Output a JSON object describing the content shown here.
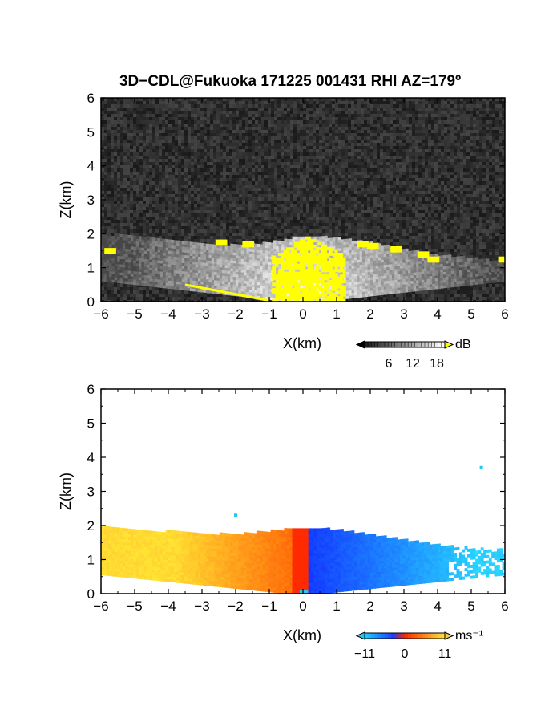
{
  "title": "3D−CDL@Fukuoka 171225 001431 RHI AZ=179º",
  "colors": {
    "echo_bg": "#2a2a2a",
    "echo_strong": "#ffff00",
    "vel_neg": "#1a3cff",
    "vel_neg_far": "#22c8f0",
    "vel_zero": "#ff2a00",
    "vel_pos": "#ffd040"
  },
  "chart_data": [
    {
      "type": "heatmap",
      "name": "intensity",
      "xlabel": "X(km)",
      "ylabel": "Z(km)",
      "xlim": [
        -6,
        6
      ],
      "ylim": [
        0,
        6
      ],
      "xticks": [
        "−6",
        "−5",
        "−4",
        "−3",
        "−2",
        "−1",
        "0",
        "1",
        "2",
        "3",
        "4",
        "5",
        "6"
      ],
      "yticks": [
        "0",
        "1",
        "2",
        "3",
        "4",
        "5",
        "6"
      ],
      "colorbar": {
        "ticks": [
          "6",
          "12",
          "18"
        ],
        "unit": "dB",
        "range": [
          0,
          20
        ]
      },
      "echo_top_km": [
        {
          "x": -6.0,
          "z": 1.95
        },
        {
          "x": -5.0,
          "z": 1.9
        },
        {
          "x": -4.0,
          "z": 1.8
        },
        {
          "x": -3.0,
          "z": 1.7
        },
        {
          "x": -2.0,
          "z": 1.62
        },
        {
          "x": -1.0,
          "z": 1.7
        },
        {
          "x": 0.0,
          "z": 1.9
        },
        {
          "x": 1.0,
          "z": 1.85
        },
        {
          "x": 2.0,
          "z": 1.7
        },
        {
          "x": 3.0,
          "z": 1.5
        },
        {
          "x": 4.0,
          "z": 1.35
        },
        {
          "x": 5.0,
          "z": 1.25
        },
        {
          "x": 6.0,
          "z": 1.15
        }
      ]
    },
    {
      "type": "heatmap",
      "name": "doppler_velocity",
      "xlabel": "X(km)",
      "ylabel": "Z(km)",
      "xlim": [
        -6,
        6
      ],
      "ylim": [
        0,
        6
      ],
      "xticks": [
        "−6",
        "−5",
        "−4",
        "−3",
        "−2",
        "−1",
        "0",
        "1",
        "2",
        "3",
        "4",
        "5",
        "6"
      ],
      "yticks": [
        "0",
        "1",
        "2",
        "3",
        "4",
        "5",
        "6"
      ],
      "colorbar": {
        "ticks": [
          "−11",
          "0",
          "11"
        ],
        "unit": "ms⁻¹",
        "range": [
          -11,
          11
        ]
      },
      "echo_top_km": [
        {
          "x": -6.0,
          "z": 1.95
        },
        {
          "x": -5.0,
          "z": 1.85
        },
        {
          "x": -4.0,
          "z": 1.8
        },
        {
          "x": -3.0,
          "z": 1.75
        },
        {
          "x": -2.0,
          "z": 1.7
        },
        {
          "x": -1.0,
          "z": 1.8
        },
        {
          "x": 0.0,
          "z": 1.92
        },
        {
          "x": 1.0,
          "z": 1.85
        },
        {
          "x": 2.0,
          "z": 1.7
        },
        {
          "x": 3.0,
          "z": 1.55
        },
        {
          "x": 4.0,
          "z": 1.4
        },
        {
          "x": 5.0,
          "z": 1.3
        },
        {
          "x": 6.0,
          "z": 1.25
        }
      ],
      "isolated_points": [
        {
          "x": -2.0,
          "z": 2.3
        },
        {
          "x": 5.3,
          "z": 3.7
        }
      ]
    }
  ]
}
